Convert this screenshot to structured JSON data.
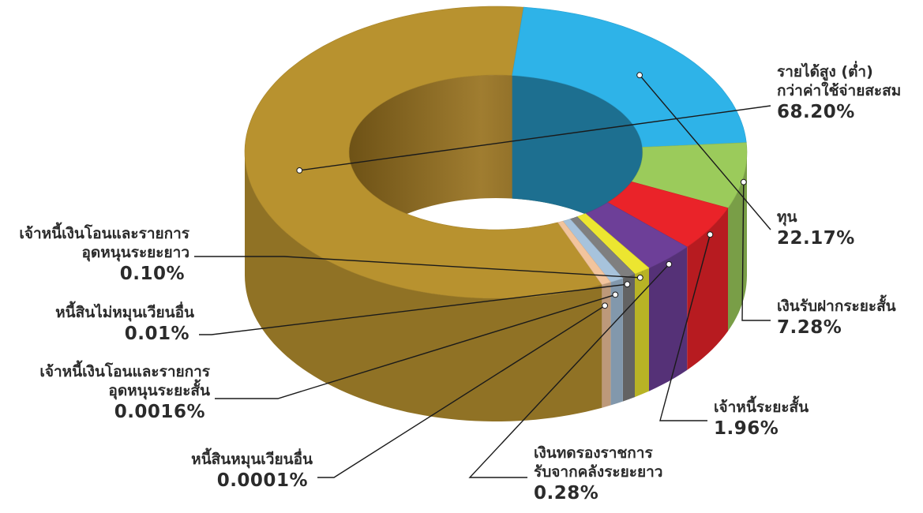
{
  "chart_data": {
    "type": "pie",
    "title": "",
    "slices": [
      {
        "key": "accum",
        "name": "รายได้สูง (ต่ำ) กว่าค่าใช้จ่ายสะสม",
        "lines": [
          "รายได้สูง (ต่ำ)",
          "กว่าค่าใช้จ่ายสะสม"
        ],
        "value": 68.2,
        "label": "68.20%",
        "color": "#b8922f"
      },
      {
        "key": "capital",
        "name": "ทุน",
        "lines": [
          "ทุน"
        ],
        "value": 22.17,
        "label": "22.17%",
        "color": "#2eb3e8"
      },
      {
        "key": "deposit",
        "name": "เงินรับฝากระยะสั้น",
        "lines": [
          "เงินรับฝากระยะสั้น"
        ],
        "value": 7.28,
        "label": "7.28%",
        "color": "#9bcb5b"
      },
      {
        "key": "st-payable",
        "name": "เจ้าหนี้ระยะสั้น",
        "lines": [
          "เจ้าหนี้ระยะสั้น"
        ],
        "value": 1.96,
        "label": "1.96%",
        "color": "#ea2329"
      },
      {
        "key": "advance",
        "name": "เงินทดรองราชการรับจากคลังระยะยาว",
        "lines": [
          "เงินทดรองราชการ",
          "รับจากคลังระยะยาว"
        ],
        "value": 0.28,
        "label": "0.28%",
        "color": "#6d3f98"
      },
      {
        "key": "lt-transfer",
        "name": "เจ้าหนี้เงินโอนและรายการอุดหนุนระยะยาว",
        "lines": [
          "เจ้าหนี้เงินโอนและรายการ",
          "อุดหนุนระยะยาว"
        ],
        "value": 0.1,
        "label": "0.10%",
        "color": "#ece630"
      },
      {
        "key": "noncurrent-other",
        "name": "หนี้สินไม่หมุนเวียนอื่น",
        "lines": [
          "หนี้สินไม่หมุนเวียนอื่น"
        ],
        "value": 0.01,
        "label": "0.01%",
        "color": "#7f7f7f"
      },
      {
        "key": "st-transfer",
        "name": "เจ้าหนี้เงินโอนและรายการอุดหนุนระยะสั้น",
        "lines": [
          "เจ้าหนี้เงินโอนและรายการ",
          "อุดหนุนระยะสั้น"
        ],
        "value": 0.0016,
        "label": "0.0016%",
        "color": "#a7c3dc"
      },
      {
        "key": "current-other",
        "name": "หนี้สินหมุนเวียนอื่น",
        "lines": [
          "หนี้สินหมุนเวียนอื่น"
        ],
        "value": 0.0001,
        "label": "0.0001%",
        "color": "#f2c49d"
      }
    ]
  }
}
